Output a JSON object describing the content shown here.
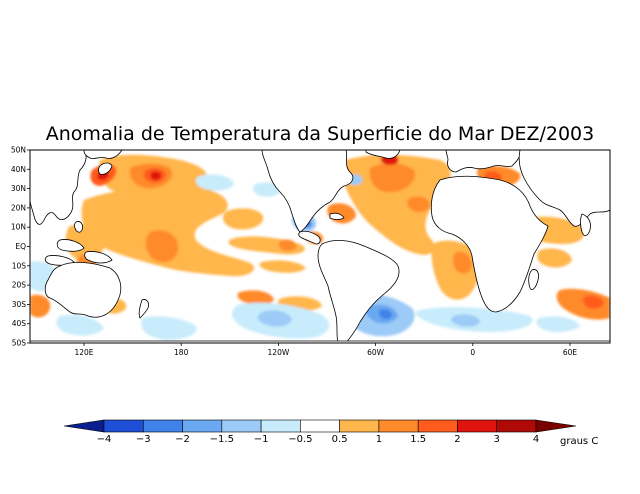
{
  "title": "Anomalia de Temperatura da Superficie do Mar DEZ/2003",
  "lat_labels": [
    "50N",
    "40N",
    "30N",
    "20N",
    "10N",
    "EQ",
    "10S",
    "20S",
    "30S",
    "40S",
    "50S"
  ],
  "lon_labels": [
    "120E",
    "180",
    "120W",
    "60W",
    "0",
    "60E"
  ],
  "colorbar": {
    "ticks": [
      "-4",
      "-3",
      "-2",
      "-1.5",
      "-1",
      "-0.5",
      "0.5",
      "1",
      "1.5",
      "2",
      "3",
      "4"
    ],
    "unit": "graus C",
    "colors": [
      "#0a1f8f",
      "#1f4fd6",
      "#3f82ea",
      "#6aa8f2",
      "#9ccbf7",
      "#c8ecfb",
      "#ffffff",
      "#ffb64c",
      "#ff8a2a",
      "#ff5c1e",
      "#e1130f",
      "#b00a08",
      "#7a0000"
    ]
  }
}
